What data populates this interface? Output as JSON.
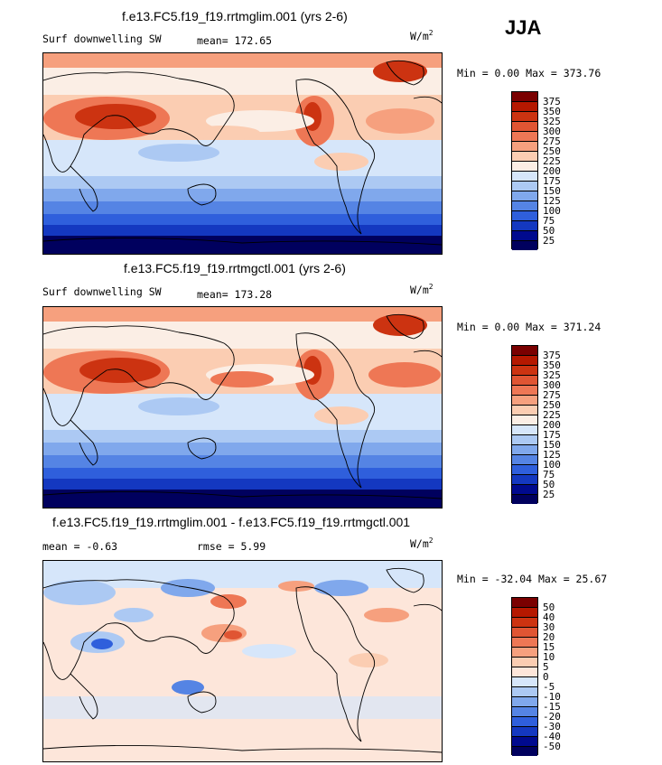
{
  "season": "JJA",
  "panels": [
    {
      "title": "f.e13.FC5.f19_f19.rrtmglim.001 (yrs 2-6)",
      "variable": "Surf downwelling SW",
      "stat": "mean= 172.65",
      "units": "W/m",
      "units_sup": "2",
      "minmax": "Min =    0.00 Max = 373.76",
      "colorbar_labels": [
        "375",
        "350",
        "325",
        "300",
        "275",
        "250",
        "225",
        "200",
        "175",
        "150",
        "125",
        "100",
        "75",
        "50",
        "25"
      ]
    },
    {
      "title": "f.e13.FC5.f19_f19.rrtmgctl.001 (yrs 2-6)",
      "variable": "Surf downwelling SW",
      "stat": "mean= 173.28",
      "units": "W/m",
      "units_sup": "2",
      "minmax": "Min =    0.00 Max = 371.24",
      "colorbar_labels": [
        "375",
        "350",
        "325",
        "300",
        "275",
        "250",
        "225",
        "200",
        "175",
        "150",
        "125",
        "100",
        "75",
        "50",
        "25"
      ]
    },
    {
      "title": "f.e13.FC5.f19_f19.rrtmglim.001 - f.e13.FC5.f19_f19.rrtmgctl.001",
      "stat_mean": "mean =  -0.63",
      "stat_rmse": "rmse =    5.99",
      "units": "W/m",
      "units_sup": "2",
      "minmax": "Min = -32.04 Max =  25.67",
      "colorbar_labels": [
        "50",
        "40",
        "30",
        "20",
        "15",
        "10",
        "5",
        "0",
        "-5",
        "-10",
        "-15",
        "-20",
        "-30",
        "-40",
        "-50"
      ]
    }
  ],
  "colors": {
    "abs_scale": [
      "#7a0000",
      "#b51800",
      "#cc3311",
      "#e05533",
      "#ee7755",
      "#f6a07e",
      "#fbcdb2",
      "#fbeee5",
      "#d6e6fa",
      "#acc9f3",
      "#80a8ec",
      "#5584e4",
      "#2f5fdc",
      "#1438c0",
      "#000a8e",
      "#00005e"
    ],
    "diff_scale": [
      "#7a0000",
      "#b51800",
      "#cc3311",
      "#e05533",
      "#ee7755",
      "#f6a07e",
      "#fbcdb2",
      "#fde6da",
      "#d6e6fa",
      "#acc9f3",
      "#80a8ec",
      "#5584e4",
      "#2f5fdc",
      "#1438c0",
      "#000a8e",
      "#00005e"
    ]
  }
}
